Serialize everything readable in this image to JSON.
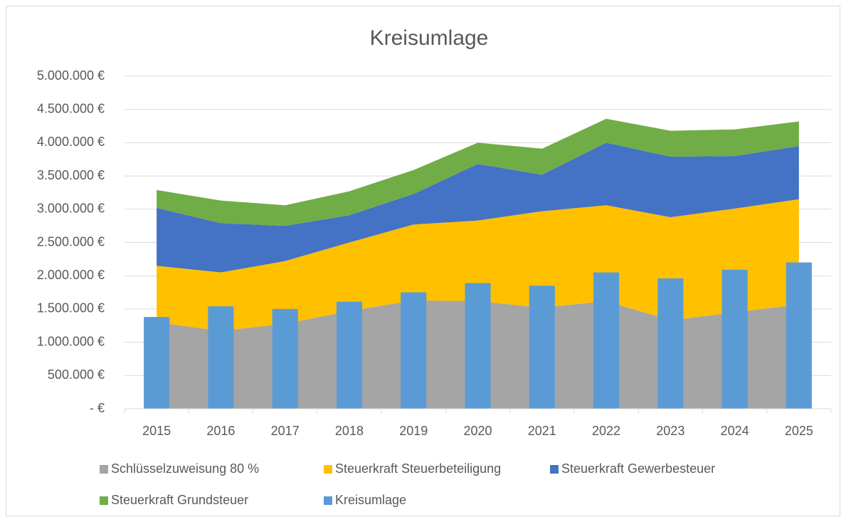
{
  "chart_data": {
    "type": "combo",
    "title": "Kreisumlage",
    "categories": [
      "2015",
      "2016",
      "2017",
      "2018",
      "2019",
      "2020",
      "2021",
      "2022",
      "2023",
      "2024",
      "2025"
    ],
    "series": [
      {
        "name": "Schlüsselzuweisung 80 %",
        "type": "area",
        "color": "#a5a5a5",
        "values": [
          1300000,
          1170000,
          1280000,
          1470000,
          1630000,
          1620000,
          1520000,
          1620000,
          1330000,
          1450000,
          1570000
        ]
      },
      {
        "name": "Steuerkraft Steuerbeteiligung",
        "type": "area",
        "color": "#ffc000",
        "values": [
          850000,
          880000,
          940000,
          1030000,
          1140000,
          1210000,
          1450000,
          1440000,
          1550000,
          1560000,
          1580000
        ]
      },
      {
        "name": "Steuerkraft Gewerbesteuer",
        "type": "area",
        "color": "#4472c4",
        "values": [
          870000,
          740000,
          530000,
          410000,
          460000,
          850000,
          550000,
          940000,
          910000,
          790000,
          800000
        ]
      },
      {
        "name": "Steuerkraft Grundsteuer",
        "type": "area",
        "color": "#70ad47",
        "values": [
          270000,
          340000,
          310000,
          360000,
          360000,
          320000,
          390000,
          360000,
          390000,
          400000,
          370000
        ]
      },
      {
        "name": "Kreisumlage",
        "type": "bar",
        "color": "#5b9bd5",
        "values": [
          1380000,
          1540000,
          1500000,
          1610000,
          1750000,
          1890000,
          1850000,
          2050000,
          1960000,
          2090000,
          2200000
        ]
      }
    ],
    "ylim": [
      0,
      5000000
    ],
    "yticks": [
      {
        "value": 0,
        "label": "-  €"
      },
      {
        "value": 500000,
        "label": "500.000 €"
      },
      {
        "value": 1000000,
        "label": "1.000.000 €"
      },
      {
        "value": 1500000,
        "label": "1.500.000 €"
      },
      {
        "value": 2000000,
        "label": "2.000.000 €"
      },
      {
        "value": 2500000,
        "label": "2.500.000 €"
      },
      {
        "value": 3000000,
        "label": "3.000.000 €"
      },
      {
        "value": 3500000,
        "label": "3.500.000 €"
      },
      {
        "value": 4000000,
        "label": "4.000.000 €"
      },
      {
        "value": 4500000,
        "label": "4.500.000 €"
      },
      {
        "value": 5000000,
        "label": "5.000.000 €"
      }
    ],
    "grid": true,
    "legend": "bottom"
  }
}
